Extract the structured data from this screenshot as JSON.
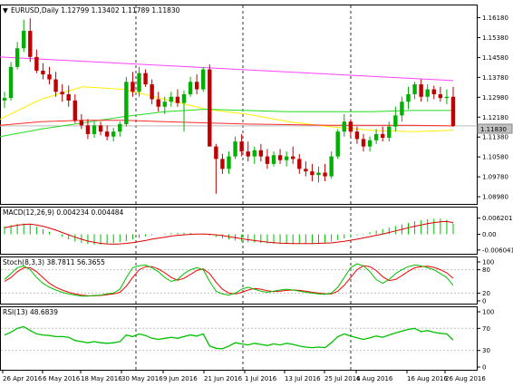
{
  "chart_header": {
    "symbol_line": "EURUSD,Daily  1.12799 1.13402 1.11789 1.11830",
    "current_price": "1.11830"
  },
  "panels": {
    "macd_label": "MACD(12,26,9) 0.004234 0.004484",
    "stoch_label": "Stoch(8,3,3) 38.7811 56.3655",
    "rsi_label": "RSI(13) 48.6839"
  },
  "colors": {
    "bull": "#00b000",
    "bear": "#c00000",
    "ma_magenta": "#ff44ff",
    "ma_yellow": "#ffee00",
    "ma_green": "#22dd22",
    "ma_red": "#ff2a2a",
    "stoch_main": "#00c000",
    "stoch_signal": "#ff0000",
    "rsi": "#00c000",
    "macd_hist": "#00c000",
    "macd_signal": "#e00000"
  },
  "chart_data": [
    {
      "type": "candlestick",
      "name": "price",
      "y_ticks": [
        "1.16180",
        "1.15380",
        "1.14580",
        "1.13780",
        "1.12980",
        "1.12180",
        "1.11380",
        "1.10580",
        "1.09780",
        "1.08980"
      ],
      "ylim": [
        1.088,
        1.166
      ],
      "x_tick_labels": [
        "26 Apr 2016",
        "6 May 2016",
        "18 May 2016",
        "30 May 2016",
        "9 Jun 2016",
        "21 Jun 2016",
        "1 Jul 2016",
        "13 Jul 2016",
        "25 Jul 2016",
        "4 Aug 2016",
        "16 Aug 2016",
        "26 Aug 2016"
      ],
      "candles": [
        {
          "o": 1.1285,
          "h": 1.132,
          "l": 1.1255,
          "c": 1.1295
        },
        {
          "o": 1.1295,
          "h": 1.144,
          "l": 1.1285,
          "c": 1.142
        },
        {
          "o": 1.142,
          "h": 1.152,
          "l": 1.141,
          "c": 1.1495
        },
        {
          "o": 1.1495,
          "h": 1.161,
          "l": 1.148,
          "c": 1.1565
        },
        {
          "o": 1.1565,
          "h": 1.1615,
          "l": 1.144,
          "c": 1.146
        },
        {
          "o": 1.146,
          "h": 1.149,
          "l": 1.1395,
          "c": 1.1405
        },
        {
          "o": 1.1405,
          "h": 1.1435,
          "l": 1.137,
          "c": 1.139
        },
        {
          "o": 1.139,
          "h": 1.142,
          "l": 1.135,
          "c": 1.137
        },
        {
          "o": 1.137,
          "h": 1.14,
          "l": 1.13,
          "c": 1.132
        },
        {
          "o": 1.132,
          "h": 1.135,
          "l": 1.128,
          "c": 1.131
        },
        {
          "o": 1.131,
          "h": 1.1345,
          "l": 1.126,
          "c": 1.1285
        },
        {
          "o": 1.1285,
          "h": 1.131,
          "l": 1.1195,
          "c": 1.1205
        },
        {
          "o": 1.1205,
          "h": 1.123,
          "l": 1.117,
          "c": 1.1185
        },
        {
          "o": 1.1185,
          "h": 1.121,
          "l": 1.113,
          "c": 1.115
        },
        {
          "o": 1.115,
          "h": 1.12,
          "l": 1.1135,
          "c": 1.1185
        },
        {
          "o": 1.1185,
          "h": 1.12,
          "l": 1.1145,
          "c": 1.116
        },
        {
          "o": 1.116,
          "h": 1.1185,
          "l": 1.1125,
          "c": 1.114
        },
        {
          "o": 1.114,
          "h": 1.1175,
          "l": 1.112,
          "c": 1.116
        },
        {
          "o": 1.116,
          "h": 1.12,
          "l": 1.114,
          "c": 1.119
        },
        {
          "o": 1.119,
          "h": 1.138,
          "l": 1.118,
          "c": 1.136
        },
        {
          "o": 1.136,
          "h": 1.14,
          "l": 1.13,
          "c": 1.132
        },
        {
          "o": 1.132,
          "h": 1.142,
          "l": 1.13,
          "c": 1.1395
        },
        {
          "o": 1.1395,
          "h": 1.141,
          "l": 1.134,
          "c": 1.135
        },
        {
          "o": 1.135,
          "h": 1.137,
          "l": 1.127,
          "c": 1.129
        },
        {
          "o": 1.129,
          "h": 1.132,
          "l": 1.124,
          "c": 1.126
        },
        {
          "o": 1.126,
          "h": 1.13,
          "l": 1.123,
          "c": 1.128
        },
        {
          "o": 1.128,
          "h": 1.132,
          "l": 1.126,
          "c": 1.13
        },
        {
          "o": 1.13,
          "h": 1.133,
          "l": 1.126,
          "c": 1.1275
        },
        {
          "o": 1.1275,
          "h": 1.1325,
          "l": 1.116,
          "c": 1.131
        },
        {
          "o": 1.131,
          "h": 1.138,
          "l": 1.13,
          "c": 1.136
        },
        {
          "o": 1.136,
          "h": 1.139,
          "l": 1.131,
          "c": 1.133
        },
        {
          "o": 1.133,
          "h": 1.142,
          "l": 1.132,
          "c": 1.141
        },
        {
          "o": 1.141,
          "h": 1.143,
          "l": 1.11,
          "c": 1.11
        },
        {
          "o": 1.11,
          "h": 1.111,
          "l": 1.091,
          "c": 1.105
        },
        {
          "o": 1.105,
          "h": 1.107,
          "l": 1.099,
          "c": 1.101
        },
        {
          "o": 1.101,
          "h": 1.108,
          "l": 1.099,
          "c": 1.106
        },
        {
          "o": 1.106,
          "h": 1.114,
          "l": 1.105,
          "c": 1.112
        },
        {
          "o": 1.112,
          "h": 1.115,
          "l": 1.106,
          "c": 1.108
        },
        {
          "o": 1.108,
          "h": 1.112,
          "l": 1.104,
          "c": 1.106
        },
        {
          "o": 1.106,
          "h": 1.11,
          "l": 1.103,
          "c": 1.1085
        },
        {
          "o": 1.1085,
          "h": 1.111,
          "l": 1.104,
          "c": 1.106
        },
        {
          "o": 1.106,
          "h": 1.109,
          "l": 1.101,
          "c": 1.103
        },
        {
          "o": 1.103,
          "h": 1.108,
          "l": 1.102,
          "c": 1.1065
        },
        {
          "o": 1.1065,
          "h": 1.109,
          "l": 1.103,
          "c": 1.1045
        },
        {
          "o": 1.1045,
          "h": 1.108,
          "l": 1.102,
          "c": 1.106
        },
        {
          "o": 1.106,
          "h": 1.11,
          "l": 1.103,
          "c": 1.105
        },
        {
          "o": 1.105,
          "h": 1.107,
          "l": 1.099,
          "c": 1.101
        },
        {
          "o": 1.101,
          "h": 1.104,
          "l": 1.098,
          "c": 1.1
        },
        {
          "o": 1.1,
          "h": 1.103,
          "l": 1.096,
          "c": 1.0985
        },
        {
          "o": 1.0985,
          "h": 1.102,
          "l": 1.0955,
          "c": 1.0995
        },
        {
          "o": 1.0995,
          "h": 1.103,
          "l": 1.096,
          "c": 1.098
        },
        {
          "o": 1.098,
          "h": 1.108,
          "l": 1.097,
          "c": 1.106
        },
        {
          "o": 1.106,
          "h": 1.117,
          "l": 1.105,
          "c": 1.116
        },
        {
          "o": 1.116,
          "h": 1.123,
          "l": 1.114,
          "c": 1.12
        },
        {
          "o": 1.12,
          "h": 1.121,
          "l": 1.114,
          "c": 1.116
        },
        {
          "o": 1.116,
          "h": 1.118,
          "l": 1.111,
          "c": 1.113
        },
        {
          "o": 1.113,
          "h": 1.115,
          "l": 1.108,
          "c": 1.11
        },
        {
          "o": 1.11,
          "h": 1.114,
          "l": 1.108,
          "c": 1.1125
        },
        {
          "o": 1.1125,
          "h": 1.117,
          "l": 1.111,
          "c": 1.115
        },
        {
          "o": 1.115,
          "h": 1.118,
          "l": 1.112,
          "c": 1.1135
        },
        {
          "o": 1.1135,
          "h": 1.12,
          "l": 1.112,
          "c": 1.118
        },
        {
          "o": 1.118,
          "h": 1.126,
          "l": 1.116,
          "c": 1.1225
        },
        {
          "o": 1.1225,
          "h": 1.13,
          "l": 1.12,
          "c": 1.128
        },
        {
          "o": 1.128,
          "h": 1.134,
          "l": 1.125,
          "c": 1.131
        },
        {
          "o": 1.131,
          "h": 1.136,
          "l": 1.129,
          "c": 1.135
        },
        {
          "o": 1.135,
          "h": 1.137,
          "l": 1.128,
          "c": 1.13
        },
        {
          "o": 1.13,
          "h": 1.135,
          "l": 1.128,
          "c": 1.133
        },
        {
          "o": 1.133,
          "h": 1.1345,
          "l": 1.129,
          "c": 1.131
        },
        {
          "o": 1.131,
          "h": 1.134,
          "l": 1.128,
          "c": 1.1295
        },
        {
          "o": 1.1295,
          "h": 1.133,
          "l": 1.127,
          "c": 1.13
        },
        {
          "o": 1.13,
          "h": 1.134,
          "l": 1.1179,
          "c": 1.1183
        }
      ],
      "moving_averages": {
        "magenta": {
          "start": 1.146,
          "end": 1.1365
        },
        "yellow": [
          1.121,
          1.129,
          1.134,
          1.133,
          1.129,
          1.125,
          1.123,
          1.12,
          1.118,
          1.1165,
          1.116,
          1.1165
        ],
        "green": [
          1.114,
          1.117,
          1.1195,
          1.122,
          1.124,
          1.125,
          1.1245,
          1.124,
          1.124,
          1.124,
          1.1245,
          1.1245
        ],
        "red": [
          1.1185,
          1.12,
          1.1205,
          1.1205,
          1.12,
          1.1195,
          1.119,
          1.1188,
          1.1185,
          1.1185,
          1.1185,
          1.1183
        ]
      }
    },
    {
      "type": "macd",
      "name": "MACD(12,26,9)",
      "y_ticks": [
        "0.006201",
        "0.00",
        "-0.006041"
      ],
      "ylim": [
        -0.0068,
        0.0068
      ],
      "histogram": [
        0.003,
        0.0035,
        0.004,
        0.0042,
        0.0038,
        0.003,
        0.002,
        0.001,
        0.0,
        -0.001,
        -0.002,
        -0.0028,
        -0.0034,
        -0.0038,
        -0.004,
        -0.004,
        -0.0038,
        -0.0034,
        -0.003,
        -0.0026,
        -0.002,
        -0.0014,
        -0.0008,
        -0.0004,
        0.0,
        0.0003,
        0.0005,
        0.0006,
        0.0006,
        0.0005,
        0.0003,
        0.0002,
        -0.0004,
        -0.001,
        -0.0016,
        -0.002,
        -0.0024,
        -0.0028,
        -0.003,
        -0.0032,
        -0.0034,
        -0.0035,
        -0.0036,
        -0.0037,
        -0.0038,
        -0.0038,
        -0.0037,
        -0.0036,
        -0.0035,
        -0.0034,
        -0.0032,
        -0.0028,
        -0.0022,
        -0.0016,
        -0.001,
        -0.0004,
        0.0002,
        0.0008,
        0.0014,
        0.002,
        0.0026,
        0.0032,
        0.0038,
        0.0044,
        0.005,
        0.0054,
        0.0058,
        0.006,
        0.006,
        0.0056,
        0.0042
      ],
      "signal": [
        0.0025,
        0.003,
        0.0035,
        0.0038,
        0.0039,
        0.0036,
        0.0031,
        0.0024,
        0.0016,
        0.0007,
        -0.0002,
        -0.0011,
        -0.0019,
        -0.0026,
        -0.0031,
        -0.0035,
        -0.0037,
        -0.0038,
        -0.0037,
        -0.0035,
        -0.0032,
        -0.0028,
        -0.0024,
        -0.0019,
        -0.0015,
        -0.0011,
        -0.0007,
        -0.0004,
        -0.0002,
        0.0,
        0.0001,
        0.0001,
        0.0,
        -0.0002,
        -0.0005,
        -0.0009,
        -0.0013,
        -0.0017,
        -0.0021,
        -0.0024,
        -0.0027,
        -0.003,
        -0.0032,
        -0.0034,
        -0.0035,
        -0.0036,
        -0.0036,
        -0.0036,
        -0.0036,
        -0.0035,
        -0.0034,
        -0.0033,
        -0.003,
        -0.0027,
        -0.0023,
        -0.0019,
        -0.0014,
        -0.0009,
        -0.0004,
        0.0001,
        0.0007,
        0.0013,
        0.0019,
        0.0025,
        0.0031,
        0.0036,
        0.0041,
        0.0045,
        0.0048,
        0.0049,
        0.0045
      ]
    },
    {
      "type": "stochastic",
      "name": "Stoch(8,3,3)",
      "y_ticks": [
        "100",
        "80",
        "20",
        "0"
      ],
      "ylim": [
        0,
        100
      ],
      "main": [
        55,
        70,
        85,
        90,
        80,
        60,
        45,
        35,
        28,
        22,
        18,
        15,
        12,
        12,
        14,
        15,
        18,
        20,
        30,
        60,
        85,
        90,
        92,
        85,
        75,
        60,
        50,
        55,
        70,
        80,
        85,
        80,
        50,
        25,
        18,
        15,
        20,
        30,
        35,
        30,
        25,
        22,
        25,
        28,
        30,
        28,
        25,
        22,
        20,
        18,
        17,
        20,
        35,
        60,
        85,
        95,
        90,
        75,
        55,
        45,
        55,
        70,
        80,
        88,
        92,
        90,
        85,
        80,
        70,
        60,
        40
      ],
      "signal": [
        50,
        60,
        75,
        85,
        85,
        75,
        60,
        45,
        35,
        28,
        22,
        18,
        15,
        13,
        13,
        14,
        16,
        18,
        22,
        38,
        60,
        80,
        88,
        88,
        82,
        72,
        60,
        53,
        58,
        68,
        78,
        82,
        70,
        48,
        30,
        20,
        18,
        22,
        28,
        32,
        30,
        26,
        24,
        25,
        27,
        28,
        27,
        25,
        22,
        20,
        18,
        18,
        25,
        40,
        60,
        80,
        90,
        88,
        78,
        62,
        52,
        55,
        65,
        76,
        85,
        88,
        89,
        86,
        80,
        72,
        58
      ]
    },
    {
      "type": "rsi",
      "name": "RSI(13)",
      "y_ticks": [
        "100",
        "70",
        "30",
        "0"
      ],
      "ylim": [
        0,
        100
      ],
      "values": [
        58,
        63,
        70,
        73,
        66,
        60,
        58,
        57,
        55,
        55,
        54,
        48,
        46,
        44,
        46,
        44,
        43,
        44,
        46,
        58,
        55,
        60,
        57,
        52,
        50,
        52,
        54,
        52,
        55,
        58,
        56,
        60,
        38,
        34,
        33,
        38,
        44,
        42,
        40,
        43,
        41,
        39,
        42,
        40,
        43,
        41,
        38,
        36,
        35,
        36,
        35,
        44,
        55,
        60,
        56,
        53,
        50,
        53,
        56,
        54,
        58,
        62,
        65,
        68,
        70,
        64,
        66,
        63,
        61,
        60,
        49
      ]
    }
  ]
}
